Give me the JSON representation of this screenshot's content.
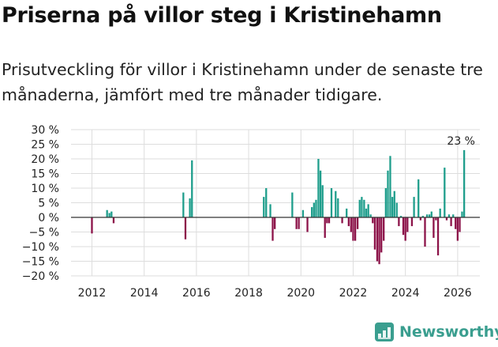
{
  "header": {
    "title": "Priserna på villor steg i Kristinehamn",
    "subtitle": "Prisutveckling för villor i Kristinehamn under de senaste tre månaderna, jämfört med tre månader tidigare."
  },
  "brand": {
    "name": "Newsworthy",
    "color": "#3a9e8f"
  },
  "colors": {
    "positive": "#1f9e8c",
    "negative": "#8c1349",
    "grid": "#dddddd",
    "zero": "#333333"
  },
  "chart_data": {
    "type": "bar",
    "title": "Priserna på villor steg i Kristinehamn",
    "ylabel": "",
    "xlabel": "",
    "ylim": [
      -20,
      30
    ],
    "xlim": [
      2011.2,
      2026.85
    ],
    "y_ticks": [
      30,
      25,
      20,
      15,
      10,
      5,
      0,
      -5,
      -10,
      -15,
      -20
    ],
    "y_tick_labels": [
      "30 %",
      "25 %",
      "20 %",
      "15 %",
      "10 %",
      "5 %",
      "0 %",
      "−5 %",
      "−10 %",
      "−15 %",
      "−20 %"
    ],
    "x_ticks": [
      2012,
      2014,
      2016,
      2018,
      2020,
      2022,
      2024,
      2026
    ],
    "x_tick_labels": [
      "2012",
      "2014",
      "2016",
      "2018",
      "2020",
      "2022",
      "2024",
      "2026"
    ],
    "grid": true,
    "annotation": {
      "x": 2026.08,
      "y": 23,
      "text": "23 %"
    },
    "series": [
      {
        "name": "Prisutveckling",
        "points": [
          [
            2012.0,
            -5.5
          ],
          [
            2012.58,
            2.5
          ],
          [
            2012.67,
            1.5
          ],
          [
            2012.75,
            2.0
          ],
          [
            2012.83,
            -2.0
          ],
          [
            2015.5,
            8.5
          ],
          [
            2015.58,
            -7.5
          ],
          [
            2015.75,
            6.5
          ],
          [
            2015.83,
            19.5
          ],
          [
            2018.58,
            7.0
          ],
          [
            2018.67,
            10.0
          ],
          [
            2018.83,
            4.5
          ],
          [
            2018.92,
            -8.0
          ],
          [
            2019.0,
            -4.0
          ],
          [
            2019.67,
            8.5
          ],
          [
            2019.83,
            -4.0
          ],
          [
            2019.92,
            -4.0
          ],
          [
            2020.08,
            2.5
          ],
          [
            2020.25,
            -5.0
          ],
          [
            2020.42,
            3.5
          ],
          [
            2020.5,
            5.0
          ],
          [
            2020.58,
            6.0
          ],
          [
            2020.67,
            20.0
          ],
          [
            2020.75,
            16.0
          ],
          [
            2020.83,
            11.0
          ],
          [
            2020.92,
            -7.0
          ],
          [
            2021.0,
            -2.0
          ],
          [
            2021.08,
            -2.0
          ],
          [
            2021.17,
            10.0
          ],
          [
            2021.33,
            9.0
          ],
          [
            2021.42,
            6.5
          ],
          [
            2021.58,
            -2.0
          ],
          [
            2021.75,
            3.0
          ],
          [
            2021.83,
            -3.0
          ],
          [
            2021.92,
            -5.0
          ],
          [
            2022.0,
            -8.0
          ],
          [
            2022.08,
            -8.0
          ],
          [
            2022.17,
            -4.0
          ],
          [
            2022.25,
            6.0
          ],
          [
            2022.33,
            7.0
          ],
          [
            2022.42,
            6.0
          ],
          [
            2022.5,
            3.0
          ],
          [
            2022.58,
            4.5
          ],
          [
            2022.67,
            1.0
          ],
          [
            2022.75,
            -2.0
          ],
          [
            2022.83,
            -11.0
          ],
          [
            2022.92,
            -15.0
          ],
          [
            2023.0,
            -16.0
          ],
          [
            2023.08,
            -12.0
          ],
          [
            2023.17,
            -8.0
          ],
          [
            2023.25,
            10.0
          ],
          [
            2023.33,
            16.0
          ],
          [
            2023.42,
            21.0
          ],
          [
            2023.5,
            7.0
          ],
          [
            2023.58,
            9.0
          ],
          [
            2023.67,
            5.0
          ],
          [
            2023.75,
            -3.0
          ],
          [
            2023.83,
            0.5
          ],
          [
            2023.92,
            -6.0
          ],
          [
            2024.0,
            -8.0
          ],
          [
            2024.08,
            -5.0
          ],
          [
            2024.25,
            -3.0
          ],
          [
            2024.33,
            7.0
          ],
          [
            2024.5,
            13.0
          ],
          [
            2024.58,
            -1.0
          ],
          [
            2024.67,
            0.5
          ],
          [
            2024.75,
            -10.0
          ],
          [
            2024.83,
            1.0
          ],
          [
            2024.92,
            1.0
          ],
          [
            2025.0,
            2.0
          ],
          [
            2025.08,
            -7.0
          ],
          [
            2025.17,
            -1.0
          ],
          [
            2025.25,
            -13.0
          ],
          [
            2025.33,
            3.0
          ],
          [
            2025.5,
            17.0
          ],
          [
            2025.58,
            -1.0
          ],
          [
            2025.67,
            1.0
          ],
          [
            2025.75,
            -3.0
          ],
          [
            2025.83,
            1.0
          ],
          [
            2025.92,
            -4.0
          ],
          [
            2026.0,
            -8.0
          ],
          [
            2026.08,
            -5.0
          ],
          [
            2026.17,
            2.0
          ],
          [
            2026.25,
            23.0
          ]
        ]
      }
    ]
  }
}
